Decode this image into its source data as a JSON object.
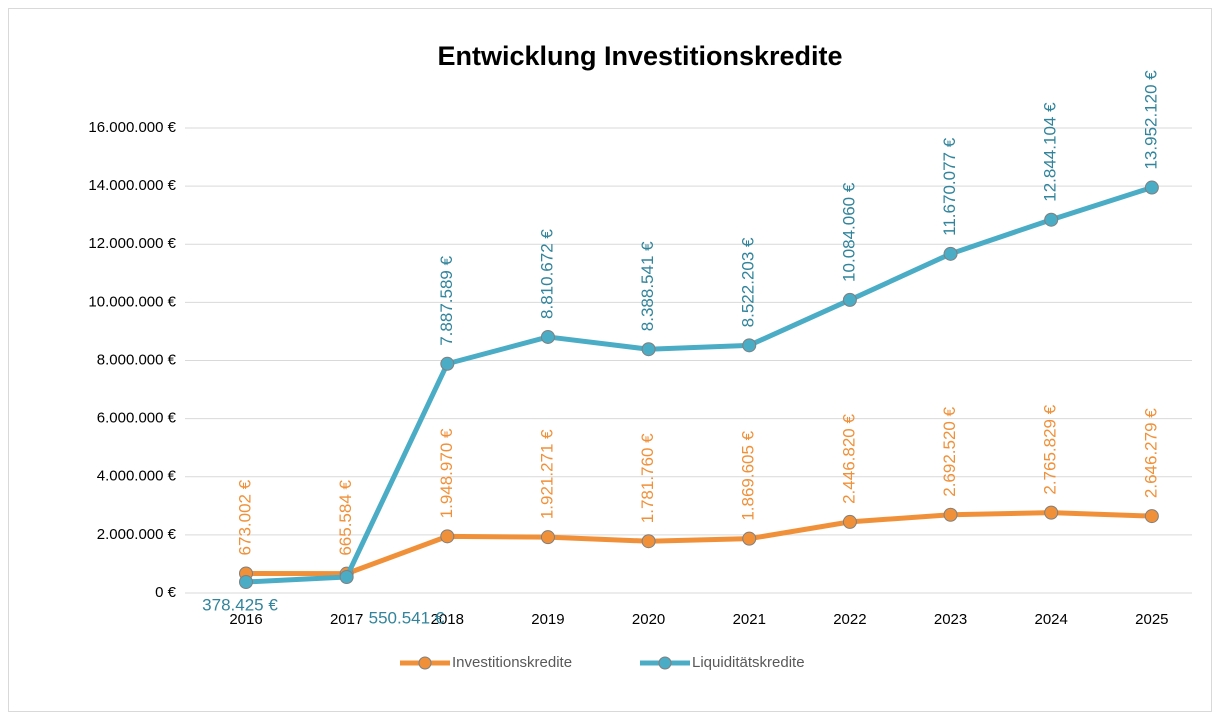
{
  "chart_data": {
    "type": "line",
    "title": "Entwicklung Investitionskredite",
    "categories": [
      "2016",
      "2017",
      "2018",
      "2019",
      "2020",
      "2021",
      "2022",
      "2023",
      "2024",
      "2025"
    ],
    "series": [
      {
        "name": "Investitionskredite",
        "color": "#f0913a",
        "values": [
          673002,
          665584,
          1948970,
          1921271,
          1781760,
          1869605,
          2446820,
          2692520,
          2765829,
          2646279
        ],
        "value_labels": [
          "673.002 €",
          "665.584 €",
          "1.948.970 €",
          "1.921.271 €",
          "1.781.760 €",
          "1.869.605 €",
          "2.446.820 €",
          "2.692.520 €",
          "2.765.829 €",
          "2.646.279 €"
        ]
      },
      {
        "name": "Liquiditätskredite",
        "color": "#4bacc6",
        "values": [
          378425,
          550541,
          7887589,
          8810672,
          8388541,
          8522203,
          10084060,
          11670077,
          12844104,
          13952120
        ],
        "value_labels": [
          "378.425 €",
          "550.541 €",
          "7.887.589 €",
          "8.810.672 €",
          "8.388.541 €",
          "8.522.203 €",
          "10.084.060 €",
          "11.670.077 €",
          "12.844.104 €",
          "13.952.120 €"
        ]
      }
    ],
    "ylim": [
      0,
      16000000
    ],
    "yticks": [
      {
        "value": 0,
        "label": "0 €"
      },
      {
        "value": 2000000,
        "label": "2.000.000 €"
      },
      {
        "value": 4000000,
        "label": "4.000.000 €"
      },
      {
        "value": 6000000,
        "label": "6.000.000 €"
      },
      {
        "value": 8000000,
        "label": "8.000.000 €"
      },
      {
        "value": 10000000,
        "label": "10.000.000 €"
      },
      {
        "value": 12000000,
        "label": "12.000.000 €"
      },
      {
        "value": 14000000,
        "label": "14.000.000 €"
      },
      {
        "value": 16000000,
        "label": "16.000.000 €"
      }
    ],
    "grid": true,
    "legend": "bottom"
  }
}
